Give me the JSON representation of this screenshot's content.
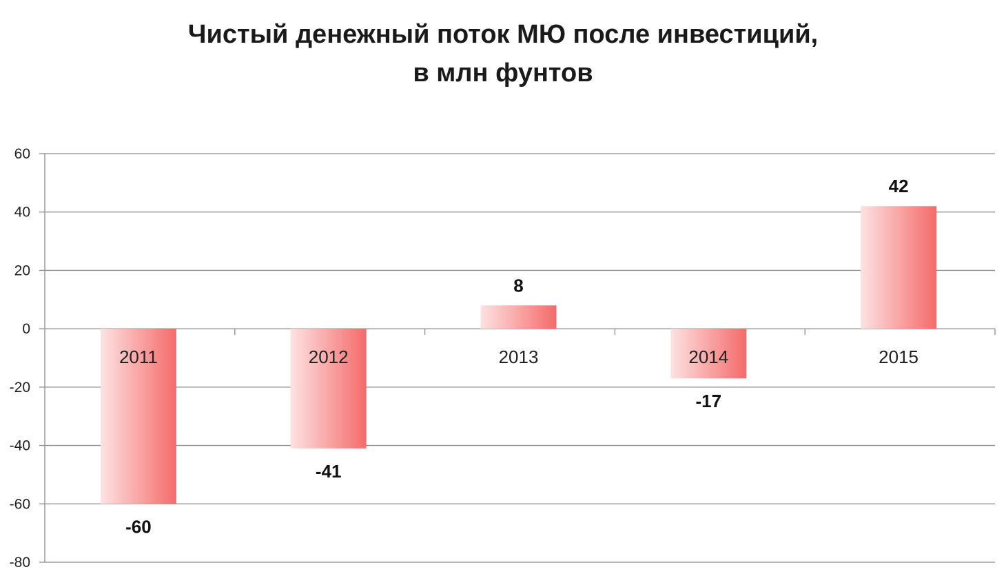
{
  "chart_data": {
    "type": "bar",
    "title_line1": "Чистый денежный поток МЮ после инвестиций,",
    "title_line2": "в млн фунтов",
    "categories": [
      "2011",
      "2012",
      "2013",
      "2014",
      "2015"
    ],
    "values": [
      -60,
      -41,
      8,
      -17,
      42
    ],
    "data_labels": [
      "-60",
      "-41",
      "8",
      "-17",
      "42"
    ],
    "ylim": [
      -80,
      60
    ],
    "yticks": [
      60,
      40,
      20,
      0,
      -20,
      -40,
      -60,
      -80
    ],
    "ytick_labels": [
      "60",
      "40",
      "20",
      "0",
      "-20",
      "-40",
      "-60",
      "-80"
    ],
    "xlabel": "",
    "ylabel": "",
    "grid": true,
    "legend": "none",
    "colors": {
      "bar_light": "#fde2e2",
      "bar_dark": "#f56a6a",
      "grid": "#8c8c8c"
    }
  }
}
